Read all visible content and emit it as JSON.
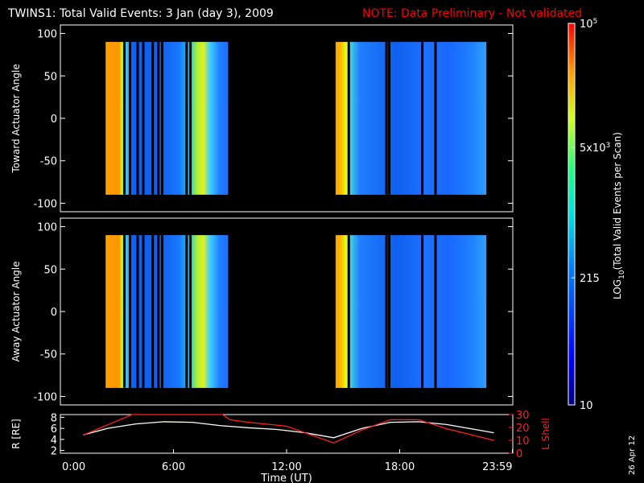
{
  "header": {
    "title": "TWINS1: Total Valid Events:  3 Jan (day   3), 2009",
    "note": "NOTE: Data Preliminary - Not validated"
  },
  "side_date": "26 Apr 12",
  "colors": {
    "background": "#000000",
    "frame": "#ffffff",
    "note": "#ff0000",
    "r_line": "#ffffff",
    "lshell_line": "#ff2020"
  },
  "chart_data": [
    {
      "type": "heatmap",
      "panel": "top",
      "ylabel": "Toward Actuator Angle",
      "ylim": [
        -110,
        110
      ],
      "yticks": [
        100,
        50,
        0,
        -50,
        -100
      ],
      "y_extent": [
        -90,
        90
      ],
      "x_range_hours": [
        0,
        24
      ],
      "data_intervals_hours": [
        [
          2.4,
          8.9
        ],
        [
          14.6,
          22.6
        ]
      ],
      "gap_times_hours": [
        3.4,
        3.7,
        4.1,
        4.4,
        4.9,
        5.2,
        5.4,
        6.7,
        6.9,
        15.3,
        17.3,
        17.45,
        19.2,
        19.9
      ],
      "colorscale": "log10, 10 to 100000"
    },
    {
      "type": "heatmap",
      "panel": "bottom",
      "ylabel": "Away Actuator Angle",
      "ylim": [
        -110,
        110
      ],
      "yticks": [
        100,
        50,
        0,
        -50,
        -100
      ],
      "y_extent": [
        -90,
        90
      ],
      "x_range_hours": [
        0,
        24
      ],
      "data_intervals_hours": [
        [
          2.4,
          8.9
        ],
        [
          14.6,
          22.6
        ]
      ],
      "gap_times_hours": [
        3.4,
        3.7,
        4.1,
        4.4,
        4.9,
        5.2,
        5.4,
        6.7,
        6.9,
        15.3,
        17.3,
        17.45,
        19.2,
        19.9
      ],
      "colorscale": "log10, 10 to 100000"
    },
    {
      "type": "line",
      "panel": "orbit",
      "xlabel": "Time (UT)",
      "xticks": [
        "0:00",
        "6:00",
        "12:00",
        "18:00",
        "23:59"
      ],
      "xtick_hours": [
        0,
        6,
        12,
        18,
        23.98
      ],
      "ylabel_left": "R [RE]",
      "ylabel_left_sub": "E",
      "ylim_left": [
        1.5,
        8.5
      ],
      "yticks_left": [
        "2",
        "4",
        "6",
        "8"
      ],
      "ylabel_right": "L Shell",
      "ylim_right": [
        0,
        30
      ],
      "yticks_right": [
        "0",
        "10",
        "20",
        "30"
      ],
      "series": [
        {
          "name": "R",
          "axis": "left",
          "x": [
            1.2,
            2.5,
            4,
            5.5,
            7,
            8.5,
            10,
            11.5,
            13,
            14.5,
            16,
            17.5,
            19,
            20.5,
            22,
            23
          ],
          "values": [
            4.8,
            6.0,
            6.8,
            7.2,
            7.1,
            6.5,
            6.1,
            5.8,
            5.2,
            4.3,
            6.0,
            7.1,
            7.2,
            6.7,
            5.8,
            5.2
          ]
        },
        {
          "name": "L Shell",
          "axis": "right",
          "x": [
            1.2,
            2.5,
            3.8,
            4.0,
            8.6,
            9.0,
            10,
            12,
            14.5,
            16,
            17.5,
            19,
            20.5,
            23
          ],
          "values": [
            14,
            22,
            30,
            30,
            30,
            26,
            24,
            21,
            8,
            18,
            26,
            26,
            19,
            10
          ]
        }
      ]
    },
    {
      "type": "colorbar",
      "label": "LOG10(Total Valid Events per Scan)",
      "label_main": "LOG",
      "label_sub": "10",
      "label_rest": "(Total Valid Events per Scan)",
      "range": [
        10,
        100000
      ],
      "ticks": [
        {
          "value": 100000,
          "base": "10",
          "exp": "5",
          "mult": ""
        },
        {
          "value": 5000,
          "base": "5x10",
          "exp": "3",
          "mult": ""
        },
        {
          "value": 215,
          "base": "215",
          "exp": "",
          "mult": ""
        },
        {
          "value": 10,
          "base": "10",
          "exp": "",
          "mult": ""
        }
      ]
    }
  ]
}
